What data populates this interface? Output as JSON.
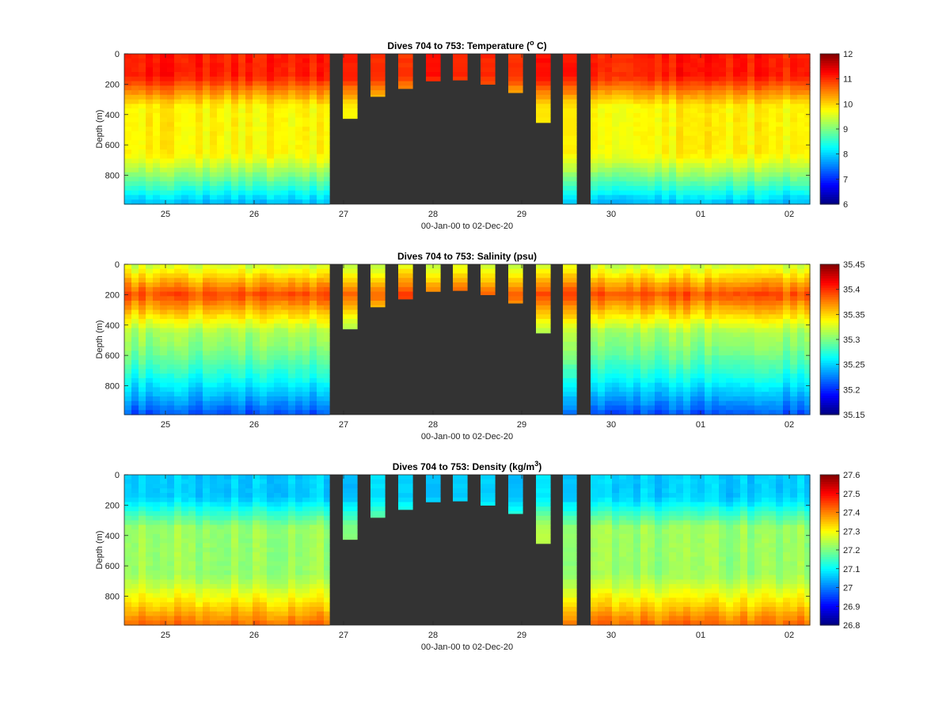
{
  "figure": {
    "background": "#ffffff",
    "gap_color": "#333333"
  },
  "chart_data": [
    {
      "type": "heatmap",
      "variable": "temperature",
      "title": "Dives 704 to 753: Temperature (",
      "title_sup": "o",
      "title_tail": " C)",
      "xlabel": "00-Jan-00 to 02-Dec-20",
      "ylabel": "Depth (m)",
      "x_ticks": [
        "25",
        "26",
        "27",
        "28",
        "29",
        "30",
        "01",
        "02"
      ],
      "y_ticks": [
        "0",
        "200",
        "400",
        "600",
        "800"
      ],
      "ylim": [
        0,
        990
      ],
      "colorbar": {
        "range": [
          6,
          12
        ],
        "ticks": [
          "12",
          "11",
          "10",
          "9",
          "8",
          "7",
          "6"
        ]
      },
      "profile": {
        "surface": 11.1,
        "top_mix_depth": 150,
        "mid": 9.8,
        "bottom": 7.8
      },
      "surface_values": [
        11.1,
        11.0,
        10.9,
        11.2,
        11.0,
        10.8,
        11.1,
        11.0,
        10.9,
        11.1,
        11.2
      ]
    },
    {
      "type": "heatmap",
      "variable": "salinity",
      "title": "Dives 704 to 753: Salinity (psu)",
      "xlabel": "00-Jan-00 to 02-Dec-20",
      "ylabel": "Depth (m)",
      "x_ticks": [
        "25",
        "26",
        "27",
        "28",
        "29",
        "30",
        "01",
        "02"
      ],
      "y_ticks": [
        "0",
        "200",
        "400",
        "600",
        "800"
      ],
      "ylim": [
        0,
        990
      ],
      "colorbar": {
        "range": [
          35.15,
          35.45
        ],
        "ticks": [
          "35.45",
          "35.4",
          "35.35",
          "35.3",
          "35.25",
          "35.2",
          "35.15"
        ]
      },
      "profile": {
        "surface": 35.32,
        "peak_depth": 200,
        "peak": 35.39,
        "mid": 35.31,
        "bottom": 35.21
      },
      "surface_values": [
        35.32,
        35.33,
        35.31,
        35.36,
        35.34,
        35.35,
        35.33,
        35.34,
        35.32,
        35.36,
        35.31
      ]
    },
    {
      "type": "heatmap",
      "variable": "density",
      "title": "Dives 704 to 753: Density (kg/m",
      "title_sup": "3",
      "title_tail": ")",
      "xlabel": "00-Jan-00 to 02-Dec-20",
      "ylabel": "Depth (m)",
      "x_ticks": [
        "25",
        "26",
        "27",
        "28",
        "29",
        "30",
        "01",
        "02"
      ],
      "y_ticks": [
        "0",
        "200",
        "400",
        "600",
        "800"
      ],
      "ylim": [
        0,
        990
      ],
      "colorbar": {
        "range": [
          26.8,
          27.6
        ],
        "ticks": [
          "27.6",
          "27.5",
          "27.4",
          "27.3",
          "27.2",
          "27.1",
          "27",
          "26.9",
          "26.8"
        ]
      },
      "profile": {
        "surface": 27.06,
        "top_mix_depth": 150,
        "mid": 27.22,
        "bottom": 27.42
      },
      "surface_values": [
        27.06,
        27.05,
        27.07,
        27.05,
        27.06,
        27.08,
        27.05,
        27.06,
        27.07,
        27.05,
        27.06
      ]
    }
  ]
}
